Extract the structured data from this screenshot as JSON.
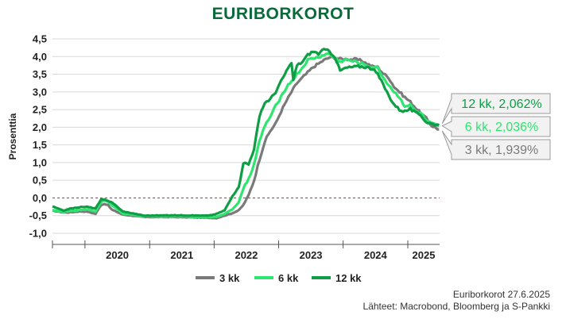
{
  "chart_data": {
    "type": "line",
    "title": "EURIBORKOROT",
    "ylabel": "Prosenttia",
    "xlabel": "",
    "ylim": [
      -1.0,
      4.5
    ],
    "yticks": [
      "-1,0",
      "-0,5",
      "0,0",
      "0,5",
      "1,0",
      "1,5",
      "2,0",
      "2,5",
      "3,0",
      "3,5",
      "4,0",
      "4,5"
    ],
    "xlim": [
      "2019-07-01",
      "2025-06-30"
    ],
    "year_labels": [
      "2020",
      "2021",
      "2022",
      "2023",
      "2024",
      "2025"
    ],
    "grid": true,
    "zero_line": true,
    "legend_position": "bottom",
    "series": [
      {
        "name": "3 kk",
        "color": "#7a7a7a",
        "points": [
          [
            "2019-07-01",
            -0.36
          ],
          [
            "2019-09-01",
            -0.41
          ],
          [
            "2019-10-01",
            -0.41
          ],
          [
            "2019-12-01",
            -0.38
          ],
          [
            "2020-01-15",
            -0.39
          ],
          [
            "2020-03-01",
            -0.45
          ],
          [
            "2020-04-01",
            -0.2
          ],
          [
            "2020-04-20",
            -0.17
          ],
          [
            "2020-05-10",
            -0.2
          ],
          [
            "2020-06-01",
            -0.33
          ],
          [
            "2020-08-01",
            -0.47
          ],
          [
            "2020-12-01",
            -0.54
          ],
          [
            "2021-06-01",
            -0.54
          ],
          [
            "2021-12-01",
            -0.56
          ],
          [
            "2022-01-15",
            -0.57
          ],
          [
            "2022-03-01",
            -0.5
          ],
          [
            "2022-04-15",
            -0.43
          ],
          [
            "2022-05-20",
            -0.35
          ],
          [
            "2022-06-15",
            -0.2
          ],
          [
            "2022-07-15",
            0.08
          ],
          [
            "2022-08-15",
            0.5
          ],
          [
            "2022-09-15",
            1.1
          ],
          [
            "2022-10-15",
            1.6
          ],
          [
            "2022-11-15",
            1.9
          ],
          [
            "2022-12-15",
            2.1
          ],
          [
            "2023-01-15",
            2.45
          ],
          [
            "2023-02-15",
            2.75
          ],
          [
            "2023-03-15",
            3.0
          ],
          [
            "2023-04-15",
            3.25
          ],
          [
            "2023-05-15",
            3.4
          ],
          [
            "2023-06-15",
            3.55
          ],
          [
            "2023-07-15",
            3.7
          ],
          [
            "2023-08-15",
            3.8
          ],
          [
            "2023-09-15",
            3.9
          ],
          [
            "2023-10-15",
            3.97
          ],
          [
            "2023-11-15",
            3.97
          ],
          [
            "2023-12-15",
            3.93
          ],
          [
            "2024-01-15",
            3.93
          ],
          [
            "2024-02-15",
            3.92
          ],
          [
            "2024-03-15",
            3.92
          ],
          [
            "2024-04-15",
            3.88
          ],
          [
            "2024-05-15",
            3.8
          ],
          [
            "2024-06-15",
            3.72
          ],
          [
            "2024-07-15",
            3.7
          ],
          [
            "2024-08-15",
            3.52
          ],
          [
            "2024-09-15",
            3.4
          ],
          [
            "2024-10-15",
            3.15
          ],
          [
            "2024-11-15",
            3.0
          ],
          [
            "2024-12-15",
            2.85
          ],
          [
            "2025-01-15",
            2.72
          ],
          [
            "2025-02-15",
            2.55
          ],
          [
            "2025-03-15",
            2.4
          ],
          [
            "2025-04-15",
            2.25
          ],
          [
            "2025-05-15",
            2.05
          ],
          [
            "2025-06-27",
            1.94
          ]
        ]
      },
      {
        "name": "6 kk",
        "color": "#2ee56f",
        "points": [
          [
            "2019-07-01",
            -0.34
          ],
          [
            "2019-09-01",
            -0.4
          ],
          [
            "2019-10-01",
            -0.38
          ],
          [
            "2019-12-01",
            -0.34
          ],
          [
            "2020-01-15",
            -0.33
          ],
          [
            "2020-03-01",
            -0.38
          ],
          [
            "2020-04-01",
            -0.12
          ],
          [
            "2020-04-20",
            -0.07
          ],
          [
            "2020-05-10",
            -0.1
          ],
          [
            "2020-06-01",
            -0.2
          ],
          [
            "2020-08-01",
            -0.44
          ],
          [
            "2020-12-01",
            -0.52
          ],
          [
            "2021-06-01",
            -0.52
          ],
          [
            "2021-12-01",
            -0.54
          ],
          [
            "2022-01-15",
            -0.53
          ],
          [
            "2022-03-01",
            -0.45
          ],
          [
            "2022-04-15",
            -0.32
          ],
          [
            "2022-05-20",
            -0.12
          ],
          [
            "2022-06-15",
            0.25
          ],
          [
            "2022-07-15",
            0.55
          ],
          [
            "2022-08-15",
            0.95
          ],
          [
            "2022-09-15",
            1.6
          ],
          [
            "2022-10-15",
            2.05
          ],
          [
            "2022-11-15",
            2.3
          ],
          [
            "2022-12-15",
            2.6
          ],
          [
            "2023-01-15",
            2.85
          ],
          [
            "2023-02-15",
            3.15
          ],
          [
            "2023-03-15",
            3.3
          ],
          [
            "2023-04-15",
            3.5
          ],
          [
            "2023-05-15",
            3.68
          ],
          [
            "2023-06-15",
            3.9
          ],
          [
            "2023-07-15",
            3.95
          ],
          [
            "2023-08-15",
            3.98
          ],
          [
            "2023-09-15",
            4.05
          ],
          [
            "2023-10-15",
            4.08
          ],
          [
            "2023-11-15",
            3.95
          ],
          [
            "2023-12-15",
            3.85
          ],
          [
            "2024-01-15",
            3.92
          ],
          [
            "2024-02-15",
            3.88
          ],
          [
            "2024-03-15",
            3.85
          ],
          [
            "2024-04-15",
            3.8
          ],
          [
            "2024-05-15",
            3.75
          ],
          [
            "2024-06-15",
            3.7
          ],
          [
            "2024-07-15",
            3.68
          ],
          [
            "2024-08-15",
            3.4
          ],
          [
            "2024-09-15",
            3.2
          ],
          [
            "2024-10-15",
            3.0
          ],
          [
            "2024-11-15",
            2.85
          ],
          [
            "2024-12-15",
            2.6
          ],
          [
            "2025-01-15",
            2.62
          ],
          [
            "2025-02-15",
            2.45
          ],
          [
            "2025-03-15",
            2.4
          ],
          [
            "2025-04-15",
            2.18
          ],
          [
            "2025-05-15",
            2.1
          ],
          [
            "2025-06-27",
            2.04
          ]
        ]
      },
      {
        "name": "12 kk",
        "color": "#0f9e46",
        "points": [
          [
            "2019-07-01",
            -0.24
          ],
          [
            "2019-09-01",
            -0.36
          ],
          [
            "2019-10-01",
            -0.31
          ],
          [
            "2019-12-01",
            -0.26
          ],
          [
            "2020-01-15",
            -0.25
          ],
          [
            "2020-03-01",
            -0.3
          ],
          [
            "2020-04-01",
            -0.05
          ],
          [
            "2020-04-20",
            -0.05
          ],
          [
            "2020-05-10",
            -0.08
          ],
          [
            "2020-06-01",
            -0.12
          ],
          [
            "2020-08-01",
            -0.38
          ],
          [
            "2020-12-01",
            -0.5
          ],
          [
            "2021-06-01",
            -0.49
          ],
          [
            "2021-12-01",
            -0.5
          ],
          [
            "2022-01-15",
            -0.45
          ],
          [
            "2022-03-01",
            -0.35
          ],
          [
            "2022-04-15",
            0.05
          ],
          [
            "2022-05-20",
            0.3
          ],
          [
            "2022-06-15",
            1.0
          ],
          [
            "2022-07-15",
            0.95
          ],
          [
            "2022-08-15",
            1.4
          ],
          [
            "2022-09-15",
            2.3
          ],
          [
            "2022-10-15",
            2.7
          ],
          [
            "2022-11-15",
            2.8
          ],
          [
            "2022-12-15",
            3.0
          ],
          [
            "2023-01-15",
            3.3
          ],
          [
            "2023-02-15",
            3.6
          ],
          [
            "2023-03-15",
            3.8
          ],
          [
            "2023-03-25",
            3.35
          ],
          [
            "2023-04-15",
            3.75
          ],
          [
            "2023-05-15",
            3.85
          ],
          [
            "2023-06-15",
            4.05
          ],
          [
            "2023-07-15",
            4.15
          ],
          [
            "2023-08-15",
            4.08
          ],
          [
            "2023-09-15",
            4.2
          ],
          [
            "2023-10-15",
            4.15
          ],
          [
            "2023-11-15",
            4.0
          ],
          [
            "2023-12-15",
            3.6
          ],
          [
            "2024-01-15",
            3.68
          ],
          [
            "2024-02-15",
            3.7
          ],
          [
            "2024-03-15",
            3.72
          ],
          [
            "2024-04-15",
            3.72
          ],
          [
            "2024-05-15",
            3.7
          ],
          [
            "2024-06-15",
            3.65
          ],
          [
            "2024-07-15",
            3.5
          ],
          [
            "2024-08-15",
            3.2
          ],
          [
            "2024-09-15",
            2.9
          ],
          [
            "2024-10-15",
            2.65
          ],
          [
            "2024-11-15",
            2.5
          ],
          [
            "2024-12-15",
            2.45
          ],
          [
            "2025-01-15",
            2.52
          ],
          [
            "2025-02-15",
            2.4
          ],
          [
            "2025-03-15",
            2.35
          ],
          [
            "2025-04-15",
            2.15
          ],
          [
            "2025-05-15",
            2.1
          ],
          [
            "2025-06-27",
            2.06
          ]
        ]
      }
    ],
    "callouts": [
      {
        "series": "12 kk",
        "text": "12 kk, 2,062%",
        "color": "#0f9e46"
      },
      {
        "series": "6 kk",
        "text": "6 kk, 2,036%",
        "color": "#2ee56f"
      },
      {
        "series": "3 kk",
        "text": "3 kk, 1,939%",
        "color": "#7a7a7a"
      }
    ]
  },
  "footer": {
    "line1": "Euriborkorot 27.6.2025",
    "line2": "Lähteet: Macrobond, Bloomberg ja S-Pankki"
  }
}
